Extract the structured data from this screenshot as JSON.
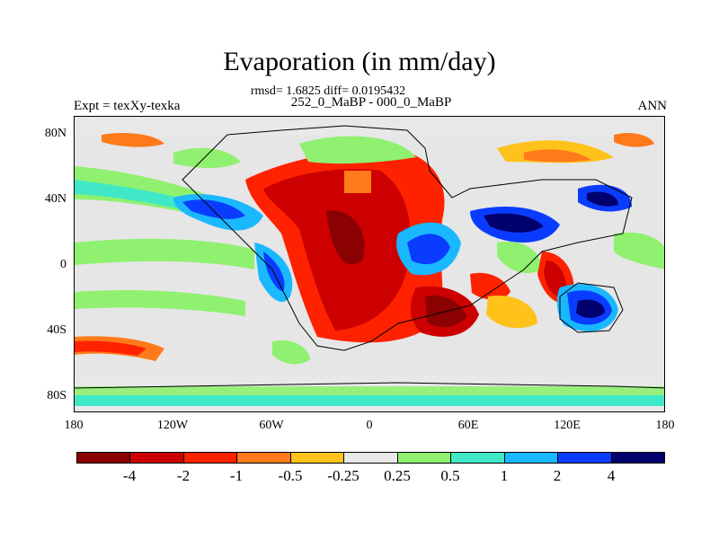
{
  "figure": {
    "title": "Evaporation (in mm/day)",
    "stats_line": "rmsd= 1.6825 diff= 0.0195432",
    "period_line": "252_0_MaBP - 000_0_MaBP",
    "experiment_label": "Expt = texXy-texka",
    "season_label": "ANN"
  },
  "axes": {
    "y_ticks": [
      "80N",
      "40N",
      "0",
      "40S",
      "80S"
    ],
    "x_ticks": [
      "180",
      "120W",
      "60W",
      "0",
      "60E",
      "120E",
      "180"
    ]
  },
  "colorbar": {
    "colors": [
      "#8b0000",
      "#cc0000",
      "#ff2200",
      "#ff7a1a",
      "#ffc21a",
      "#e8e8e8",
      "#90f070",
      "#40e8c8",
      "#1ab8ff",
      "#0a3cff",
      "#00006e"
    ],
    "labels": [
      "-4",
      "-2",
      "-1",
      "-0.5",
      "-0.25",
      "0.25",
      "0.5",
      "1",
      "2",
      "4"
    ]
  }
}
